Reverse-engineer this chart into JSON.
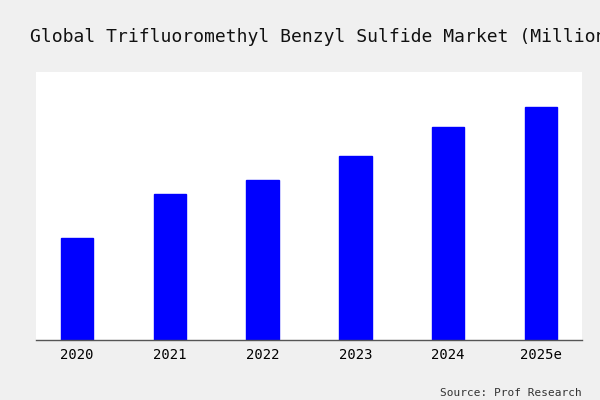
{
  "categories": [
    "2020",
    "2021",
    "2022",
    "2023",
    "2024",
    "2025e"
  ],
  "values": [
    35,
    50,
    55,
    63,
    73,
    80
  ],
  "bar_color": "#0000ff",
  "title": "Global Trifluoromethyl Benzyl Sulfide Market (Million USD)",
  "title_fontsize": 13,
  "source_text": "Source: Prof Research",
  "background_color": "#ffffff",
  "plot_bg_color": "#ffffff",
  "outer_bg_color": "#f0f0f0",
  "ylim": [
    0,
    92
  ],
  "bar_width": 0.35
}
